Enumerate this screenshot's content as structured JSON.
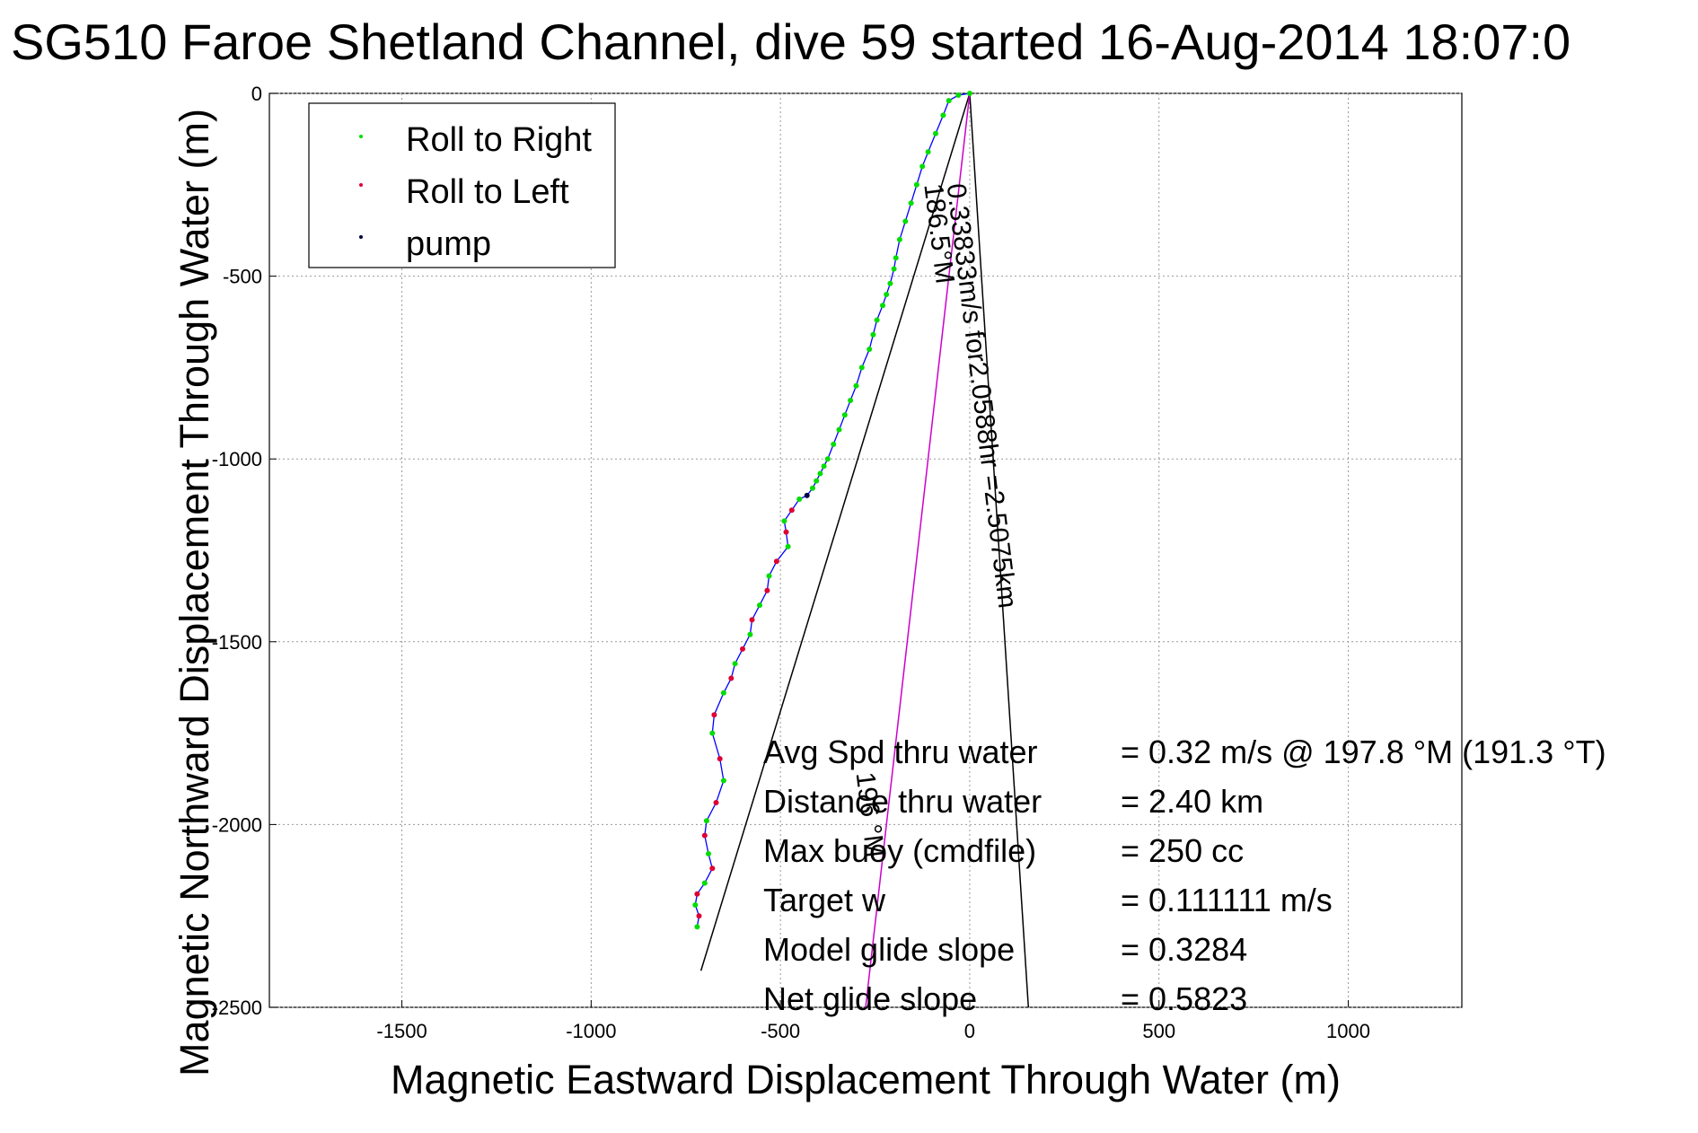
{
  "chart_data": {
    "type": "line",
    "title": "SG510 Faroe Shetland Channel, dive 59 started 16-Aug-2014 18:07:0",
    "xlabel": "Magnetic Eastward Displacement Through Water (m)",
    "ylabel": "Magnetic Northward Displacement Through Water (m)",
    "xlim": [
      -1850,
      1300
    ],
    "ylim": [
      -2500,
      0
    ],
    "xticks": [
      -1500,
      -1000,
      -500,
      0,
      500,
      1000
    ],
    "yticks": [
      0,
      -500,
      -1000,
      -1500,
      -2000,
      -2500
    ],
    "grid": true,
    "legend_position": "top-left",
    "legend": [
      {
        "label": "Roll to Right",
        "color": "#00dd00"
      },
      {
        "label": "Roll to Left",
        "color": "#dd0033"
      },
      {
        "label": "pump",
        "color": "#000044"
      }
    ],
    "track": {
      "color": "#0000ff",
      "x": [
        0,
        -30,
        -55,
        -70,
        -90,
        -110,
        -125,
        -140,
        -155,
        -170,
        -185,
        -195,
        -200,
        -210,
        -220,
        -230,
        -245,
        -255,
        -265,
        -285,
        -300,
        -315,
        -330,
        -345,
        -360,
        -375,
        -385,
        -395,
        -405,
        -415,
        -430,
        -450,
        -470,
        -490,
        -485,
        -480,
        -510,
        -530,
        -535,
        -555,
        -575,
        -580,
        -600,
        -620,
        -630,
        -650,
        -675,
        -680,
        -660,
        -650,
        -670,
        -695,
        -700,
        -690,
        -680,
        -700,
        -720,
        -725,
        -715,
        -720
      ],
      "y": [
        0,
        -5,
        -20,
        -60,
        -110,
        -160,
        -200,
        -250,
        -300,
        -350,
        -400,
        -450,
        -480,
        -520,
        -550,
        -580,
        -620,
        -660,
        -700,
        -750,
        -800,
        -840,
        -880,
        -920,
        -960,
        -1000,
        -1020,
        -1040,
        -1060,
        -1080,
        -1100,
        -1110,
        -1140,
        -1170,
        -1200,
        -1240,
        -1280,
        -1320,
        -1360,
        -1400,
        -1440,
        -1480,
        -1520,
        -1560,
        -1600,
        -1640,
        -1700,
        -1750,
        -1820,
        -1880,
        -1940,
        -1990,
        -2030,
        -2080,
        -2120,
        -2160,
        -2190,
        -2220,
        -2250,
        -2280
      ]
    },
    "annotation_lines": [
      {
        "name": "heading-ray-186.5",
        "color": "#000000",
        "x": [
          0,
          -710
        ],
        "y": [
          0,
          -2400
        ]
      },
      {
        "name": "heading-ray-197.8",
        "color": "#000000",
        "x": [
          0,
          155
        ],
        "y": [
          0,
          -2500
        ]
      },
      {
        "name": "heading-ray-196",
        "color": "#cc00cc",
        "x": [
          0,
          -275
        ],
        "y": [
          0,
          -2500
        ]
      }
    ],
    "ray_labels": [
      {
        "text": "0.33833m/s for2.0588hr =2.5075km",
        "x": -60,
        "y": -250,
        "angle": 83
      },
      {
        "text": "186.5°M",
        "x": -120,
        "y": -250,
        "angle": 83
      },
      {
        "text": "196 °M",
        "x": -300,
        "y": -1860,
        "angle": 83
      }
    ],
    "stats": [
      {
        "label": "Avg Spd thru water",
        "value": "=  0.32 m/s @ 197.8 °M (191.3 °T)"
      },
      {
        "label": "Distance thru water",
        "value": "=  2.40 km"
      },
      {
        "label": "Max buoy (cmdfile)",
        "value": "= 250 cc"
      },
      {
        "label": "Target w",
        "value": "= 0.111111 m/s"
      },
      {
        "label": "Model glide slope",
        "value": "= 0.3284"
      },
      {
        "label": "Net glide slope",
        "value": "= 0.5823"
      }
    ]
  }
}
